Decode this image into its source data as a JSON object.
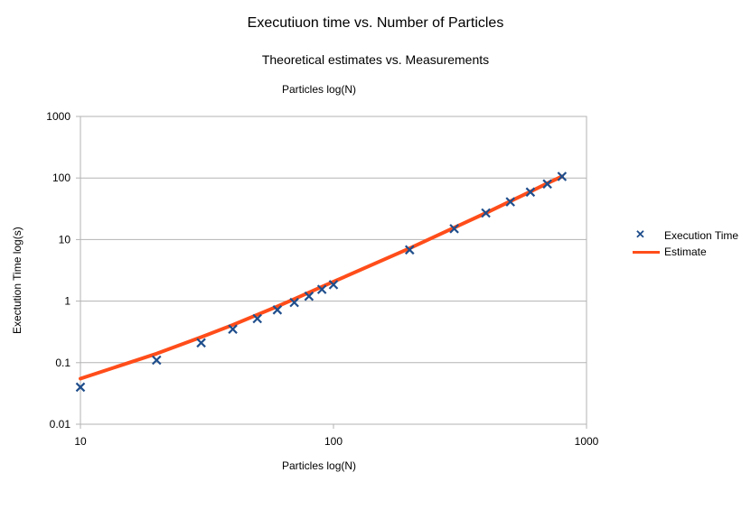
{
  "chart_data": {
    "type": "scatter",
    "title": "Executiuon time vs. Number of Particles",
    "subtitle": "Theoretical estimates vs. Measurements",
    "top_label": "Particles log(N)",
    "xlabel": "Particles log(N)",
    "ylabel": "Exectution Time log(s)",
    "xscale": "log",
    "yscale": "log",
    "xlim": [
      10,
      1000
    ],
    "ylim": [
      0.01,
      1000
    ],
    "x_ticks": [
      10,
      100,
      1000
    ],
    "x_tick_labels": [
      "10",
      "100",
      "1000"
    ],
    "y_ticks": [
      0.01,
      0.1,
      1,
      10,
      100,
      1000
    ],
    "y_tick_labels": [
      "0.01",
      "0.1",
      "1",
      "10",
      "100",
      "1000"
    ],
    "grid": true,
    "legend_position": "right",
    "series": [
      {
        "name": "Execution Time",
        "kind": "markers",
        "marker": "x",
        "color": "#1f4e8c",
        "x": [
          10,
          20,
          30,
          40,
          50,
          60,
          70,
          80,
          90,
          100,
          200,
          300,
          400,
          500,
          600,
          700,
          800
        ],
        "y": [
          0.04,
          0.11,
          0.21,
          0.35,
          0.52,
          0.72,
          0.95,
          1.2,
          1.55,
          1.85,
          6.8,
          15,
          27,
          41,
          59,
          80,
          106
        ]
      },
      {
        "name": "Estimate",
        "kind": "line",
        "color": "#ff4d1a",
        "x": [
          10,
          20,
          30,
          40,
          50,
          60,
          70,
          80,
          90,
          100,
          200,
          300,
          400,
          500,
          600,
          700,
          800
        ],
        "y": [
          0.055,
          0.14,
          0.26,
          0.41,
          0.6,
          0.82,
          1.08,
          1.38,
          1.71,
          2.07,
          7.2,
          15.6,
          27,
          42,
          60,
          82,
          106
        ]
      }
    ]
  }
}
